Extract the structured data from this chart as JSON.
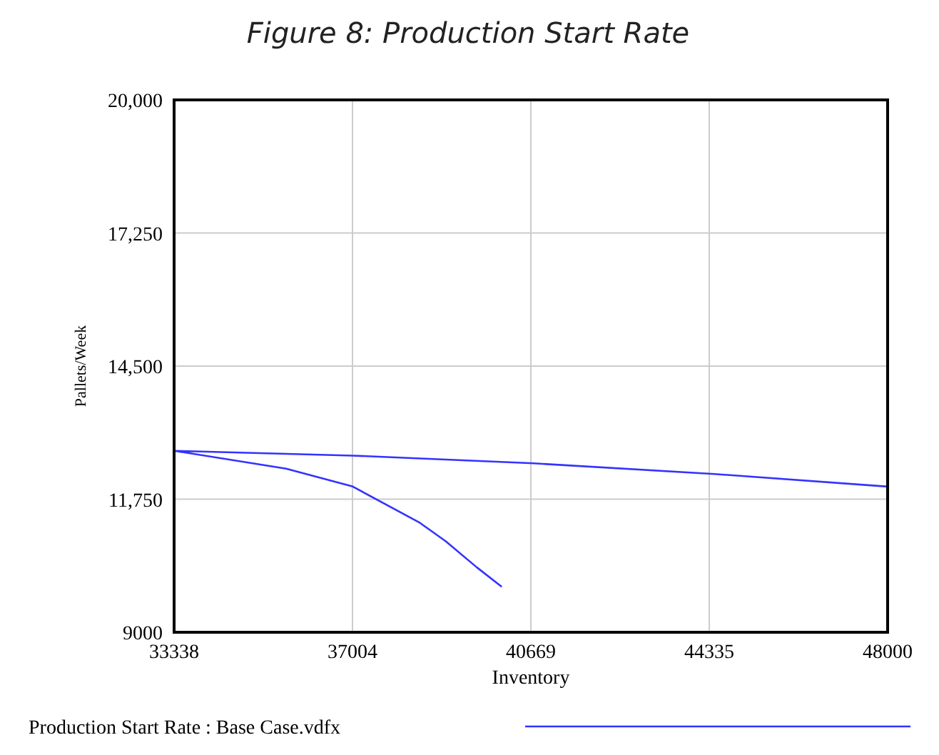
{
  "chart_data": {
    "type": "line",
    "title": "Figure 8: Production Start Rate",
    "xlabel": "Inventory",
    "ylabel": "Pallets/Week",
    "xlim": [
      33338,
      48000
    ],
    "xticks": [
      33338,
      37004,
      40669,
      44335,
      48000
    ],
    "ylim": [
      9000,
      20000
    ],
    "yticks": [
      {
        "value": 9000,
        "label": "9000"
      },
      {
        "value": 11750,
        "label": "11,750"
      },
      {
        "value": 14500,
        "label": "14,500"
      },
      {
        "value": 17250,
        "label": "17,250"
      },
      {
        "value": 20000,
        "label": "20,000"
      }
    ],
    "grid": true,
    "legend": "bottom",
    "series": [
      {
        "name": "Production Start Rate : Base  Case.vdfx",
        "color": "#3333ff",
        "x": [
          40070,
          39560,
          38920,
          38390,
          37010,
          35640,
          33338,
          37004,
          40730,
          44440,
          48000
        ],
        "values": [
          9940,
          10340,
          10880,
          11260,
          12010,
          12380,
          12750,
          12650,
          12490,
          12270,
          12010
        ]
      }
    ]
  }
}
